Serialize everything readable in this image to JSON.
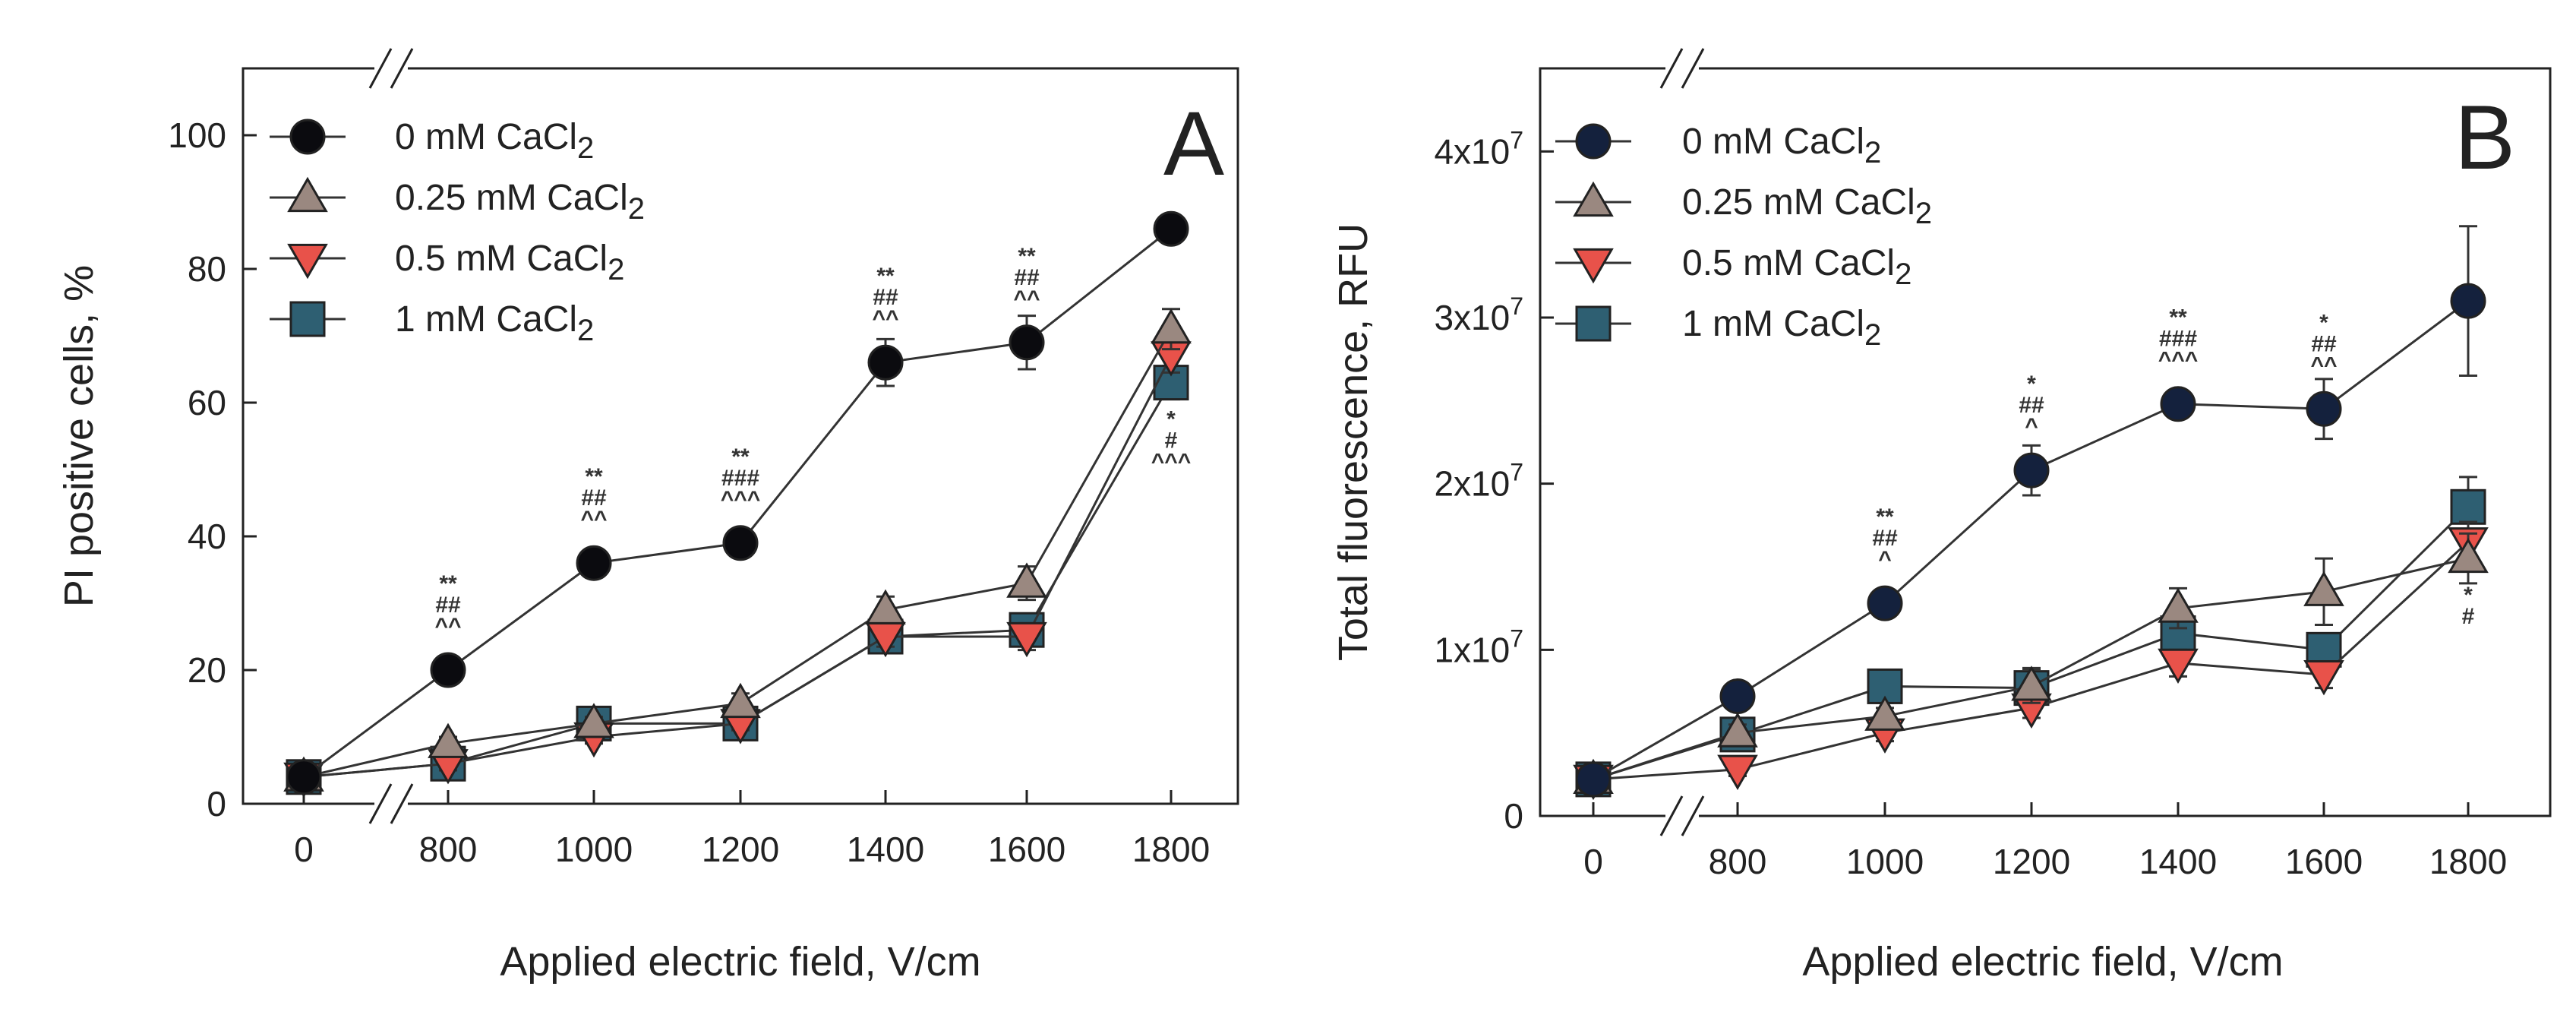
{
  "chart_data": [
    {
      "type": "line",
      "panel_label": "A",
      "xlabel": "Applied electric field, V/cm",
      "ylabel": "PI positive cells, %",
      "x": [
        0,
        800,
        1000,
        1200,
        1400,
        1600,
        1800
      ],
      "x_tick_labels": [
        "0",
        "800",
        "1000",
        "1200",
        "1400",
        "1600",
        "1800"
      ],
      "x_axis_break": "between 0 and 800",
      "ylim": [
        0,
        110
      ],
      "y_ticks": [
        0,
        20,
        40,
        60,
        80,
        100
      ],
      "y_tick_labels": [
        "0",
        "20",
        "40",
        "60",
        "80",
        "100"
      ],
      "series": [
        {
          "name": "0 mM CaCl",
          "subscript": "2",
          "marker": "circle",
          "color": "#0b0b0f",
          "values": [
            4,
            20,
            36,
            39,
            66,
            69,
            86
          ],
          "errors": [
            1.5,
            1.5,
            2,
            1.5,
            3.5,
            4,
            1.5
          ]
        },
        {
          "name": "0.25 mM CaCl",
          "subscript": "2",
          "marker": "triangle-up",
          "color": "#9a8880",
          "values": [
            4,
            9,
            12,
            15,
            29,
            33,
            71
          ],
          "errors": [
            1,
            1,
            1,
            1.5,
            2,
            2.5,
            3
          ]
        },
        {
          "name": "0.5 mM CaCl",
          "subscript": "2",
          "marker": "triangle-down",
          "color": "#e8524a",
          "values": [
            4,
            6,
            10,
            12,
            25,
            25,
            67
          ],
          "errors": [
            1,
            1,
            1,
            1,
            1.5,
            2,
            2.5
          ]
        },
        {
          "name": "1 mM CaCl",
          "subscript": "2",
          "marker": "square",
          "color": "#2e5f72",
          "values": [
            4,
            6,
            12,
            12,
            25,
            26,
            63
          ],
          "errors": [
            1,
            1,
            1,
            1,
            1.5,
            2,
            2.5
          ]
        }
      ],
      "annotations": [
        {
          "x": 800,
          "y": 20,
          "position": "above",
          "lines": [
            "**",
            "##",
            "^^"
          ]
        },
        {
          "x": 1000,
          "y": 36,
          "position": "above",
          "lines": [
            "**",
            "##",
            "^^"
          ]
        },
        {
          "x": 1200,
          "y": 39,
          "position": "above",
          "lines": [
            "**",
            "###",
            "^^^"
          ]
        },
        {
          "x": 1400,
          "y": 66,
          "position": "above",
          "lines": [
            "**",
            "##",
            "^^"
          ]
        },
        {
          "x": 1600,
          "y": 69,
          "position": "above",
          "lines": [
            "**",
            "##",
            "^^"
          ]
        },
        {
          "x": 1800,
          "y": 63,
          "position": "below",
          "lines": [
            "*",
            "#",
            "^^^"
          ]
        }
      ],
      "legend_position": "top-left"
    },
    {
      "type": "line",
      "panel_label": "B",
      "xlabel": "Applied electric field, V/cm",
      "ylabel": "Total fluorescence, RFU",
      "x": [
        0,
        800,
        1000,
        1200,
        1400,
        1600,
        1800
      ],
      "x_tick_labels": [
        "0",
        "800",
        "1000",
        "1200",
        "1400",
        "1600",
        "1800"
      ],
      "x_axis_break": "between 0 and 800",
      "ylim": [
        0,
        45000000
      ],
      "y_ticks": [
        0,
        10000000,
        20000000,
        30000000,
        40000000
      ],
      "y_tick_labels": [
        "0",
        "1x10",
        "2x10",
        "3x10",
        "4x10"
      ],
      "y_tick_exponent": "7",
      "series": [
        {
          "name": "0 mM CaCl",
          "subscript": "2",
          "marker": "circle",
          "color": "#14213d",
          "values": [
            2200000,
            7200000,
            12800000,
            20800000,
            24800000,
            24500000,
            31000000
          ],
          "errors": [
            300000,
            500000,
            600000,
            1500000,
            700000,
            1800000,
            4500000
          ]
        },
        {
          "name": "0.25 mM CaCl",
          "subscript": "2",
          "marker": "triangle-up",
          "color": "#9a8880",
          "values": [
            2200000,
            5000000,
            6000000,
            7800000,
            12500000,
            13500000,
            15500000
          ],
          "errors": [
            300000,
            500000,
            500000,
            1000000,
            1200000,
            2000000,
            1500000
          ]
        },
        {
          "name": "0.5 mM CaCl",
          "subscript": "2",
          "marker": "triangle-down",
          "color": "#e8524a",
          "values": [
            2200000,
            2800000,
            5000000,
            6500000,
            9200000,
            8500000,
            16500000
          ],
          "errors": [
            300000,
            400000,
            500000,
            600000,
            800000,
            800000,
            1200000
          ]
        },
        {
          "name": "1 mM CaCl",
          "subscript": "2",
          "marker": "square",
          "color": "#2e5f72",
          "values": [
            2200000,
            4900000,
            7800000,
            7700000,
            11000000,
            10000000,
            18600000
          ],
          "errors": [
            300000,
            500000,
            1000000,
            1200000,
            1000000,
            1000000,
            1800000
          ]
        }
      ],
      "annotations": [
        {
          "x": 1000,
          "y": 12800000,
          "position": "above",
          "lines": [
            "**",
            "##",
            "^"
          ]
        },
        {
          "x": 1200,
          "y": 20800000,
          "position": "above",
          "lines": [
            "*",
            "##",
            "^"
          ]
        },
        {
          "x": 1400,
          "y": 24800000,
          "position": "above",
          "lines": [
            "**",
            "###",
            "^^^"
          ]
        },
        {
          "x": 1600,
          "y": 24500000,
          "position": "above",
          "lines": [
            "*",
            "##",
            "^^"
          ]
        },
        {
          "x": 1800,
          "y": 15500000,
          "position": "below",
          "lines": [
            "*",
            "#"
          ]
        }
      ],
      "legend_position": "top-left"
    }
  ]
}
